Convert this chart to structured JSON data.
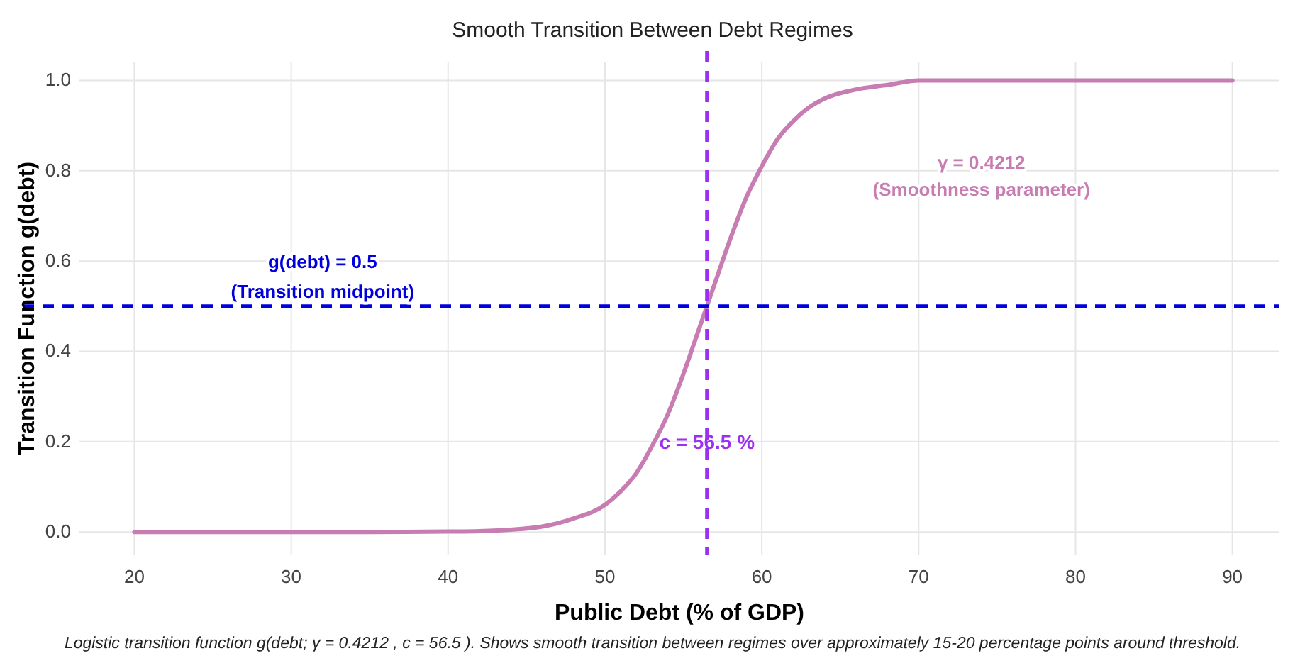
{
  "chart_data": {
    "type": "line",
    "title": "Smooth Transition Between Debt Regimes",
    "xlabel": "Public Debt (% of GDP)",
    "ylabel": "Transition Function g(debt)",
    "x": [
      20,
      30,
      35,
      40,
      42,
      44,
      46,
      48,
      50,
      51,
      52,
      53,
      54,
      55,
      56,
      56.5,
      57,
      58,
      59,
      60,
      61,
      62,
      63,
      64,
      66,
      68,
      70,
      75,
      80,
      90
    ],
    "series": [
      {
        "color": "#c77cb2",
        "values": [
          0,
          0,
          0,
          0.001,
          0.002,
          0.005,
          0.012,
          0.03,
          0.06,
          0.09,
          0.13,
          0.19,
          0.26,
          0.35,
          0.45,
          0.5,
          0.55,
          0.65,
          0.74,
          0.81,
          0.87,
          0.91,
          0.94,
          0.96,
          0.98,
          0.99,
          1,
          1,
          1,
          1
        ]
      }
    ],
    "xlim": [
      16.5,
      93
    ],
    "ylim": [
      -0.05,
      1.04
    ],
    "xticks": [
      20,
      30,
      40,
      50,
      60,
      70,
      80,
      90
    ],
    "yticks": [
      {
        "value": 0,
        "label": "0.0"
      },
      {
        "value": 0.2,
        "label": "0.2"
      },
      {
        "value": 0.4,
        "label": "0.4"
      },
      {
        "value": 0.6,
        "label": "0.6"
      },
      {
        "value": 0.8,
        "label": "0.8"
      },
      {
        "value": 1,
        "label": "1.0"
      }
    ],
    "grid": true,
    "line_style": "solid",
    "ref_lines": [
      {
        "axis": "y",
        "value": 0.5,
        "color": "#0000dd",
        "line_style": "dashed"
      },
      {
        "axis": "x",
        "value": 56.5,
        "label": "c = 56.5 %",
        "color": "#9b30f0",
        "line_style": "dashed"
      }
    ],
    "annotations": [
      "g(debt) = 0.5",
      "(Transition midpoint)",
      "γ = 0.4212",
      "(Smoothness parameter)",
      "Logistic transition function g(debt; γ = 0.4212 , c = 56.5 ). Shows smooth transition between regimes over approximately 15-20 percentage points around threshold."
    ]
  }
}
